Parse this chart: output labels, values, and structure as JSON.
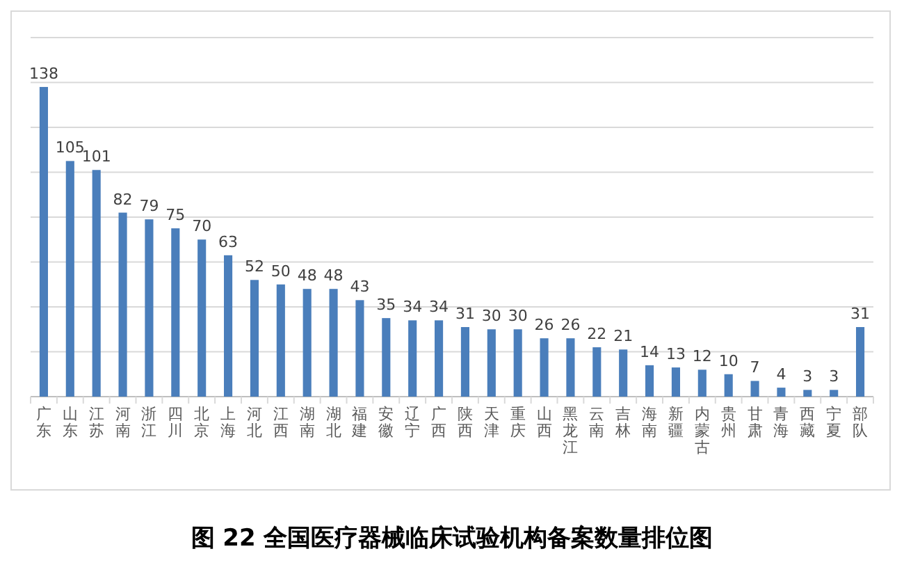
{
  "chart_data": {
    "type": "bar",
    "title": "图 22  全国医疗器械临床试验机构备案数量排位图",
    "categories": [
      "广东",
      "山东",
      "江苏",
      "河南",
      "浙江",
      "四川",
      "北京",
      "上海",
      "河北",
      "江西",
      "湖南",
      "湖北",
      "福建",
      "安徽",
      "辽宁",
      "广西",
      "陕西",
      "天津",
      "重庆",
      "山西",
      "黑龙江",
      "云南",
      "吉林",
      "海南",
      "新疆",
      "内蒙古",
      "贵州",
      "甘肃",
      "青海",
      "西藏",
      "宁夏",
      "部队"
    ],
    "values": [
      138,
      105,
      101,
      82,
      79,
      75,
      70,
      63,
      52,
      50,
      48,
      48,
      43,
      35,
      34,
      34,
      31,
      30,
      30,
      26,
      26,
      22,
      21,
      14,
      13,
      12,
      10,
      7,
      4,
      3,
      3,
      31
    ],
    "color": "#4a7ebb",
    "data_labels": true,
    "grid": "y",
    "tick_labels": "x",
    "ylim": [
      0,
      160
    ],
    "yticks": [
      {
        "value": 0,
        "label": null
      },
      {
        "value": 20,
        "label": null
      },
      {
        "value": 40,
        "label": null
      },
      {
        "value": 60,
        "label": null
      },
      {
        "value": 80,
        "label": null
      },
      {
        "value": 100,
        "label": null
      },
      {
        "value": 120,
        "label": null
      },
      {
        "value": 140,
        "label": null
      },
      {
        "value": 160,
        "label": null
      }
    ]
  }
}
